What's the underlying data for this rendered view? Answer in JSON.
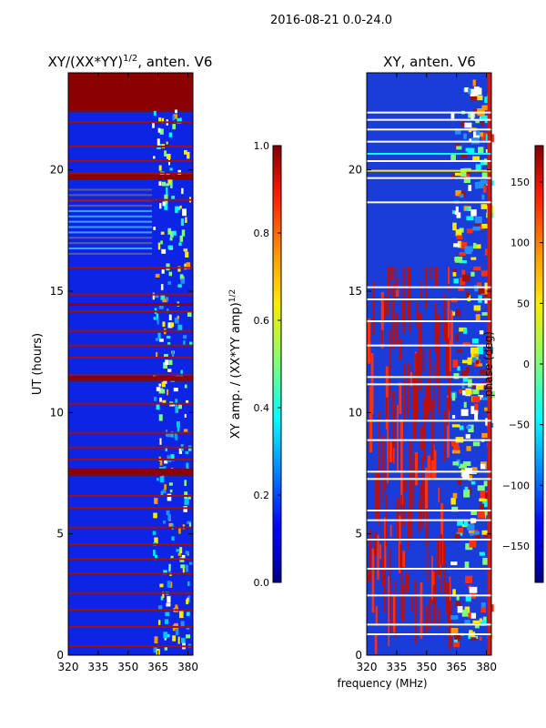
{
  "figure": {
    "suptitle": "2016-08-21 0.0-24.0",
    "xlabel": "frequency (MHz)"
  },
  "chart_data": [
    {
      "type": "heatmap",
      "title_main": "XY/(XX*YY)",
      "title_sup": "1/2",
      "title_rest": ", anten. V6",
      "ylabel": "UT (hours)",
      "xlim": [
        320,
        382.5
      ],
      "ylim": [
        0,
        24
      ],
      "xticks": [
        "320",
        "335",
        "350",
        "365",
        "380"
      ],
      "xtick_values": [
        320,
        335,
        350,
        365,
        380
      ],
      "yticks": [
        "0",
        "5",
        "10",
        "15",
        "20"
      ],
      "ytick_values": [
        0,
        5,
        10,
        15,
        20
      ],
      "colorbar": {
        "label_main": "XY amp. / (XX*YY amp)",
        "label_sup": "1/2",
        "range": [
          0.0,
          1.0
        ],
        "ticks": [
          "0.0",
          "0.2",
          "0.4",
          "0.6",
          "0.8",
          "1.0"
        ],
        "tick_values": [
          0.0,
          0.2,
          0.4,
          0.6,
          0.8,
          1.0
        ]
      }
    },
    {
      "type": "heatmap",
      "title": "XY, anten. V6",
      "xlim": [
        320,
        382.5
      ],
      "ylim": [
        0,
        24
      ],
      "xticks": [
        "320",
        "335",
        "350",
        "365",
        "380"
      ],
      "xtick_values": [
        320,
        335,
        350,
        365,
        380
      ],
      "yticks": [
        "0",
        "5",
        "10",
        "15",
        "20"
      ],
      "ytick_values": [
        0,
        5,
        10,
        15,
        20
      ],
      "colorbar": {
        "label": "phase (deg)",
        "range": [
          -180,
          180
        ],
        "ticks": [
          "−150",
          "−100",
          "−50",
          "0",
          "50",
          "100",
          "150"
        ],
        "tick_values": [
          -150,
          -100,
          -50,
          0,
          50,
          100,
          150
        ]
      }
    }
  ]
}
